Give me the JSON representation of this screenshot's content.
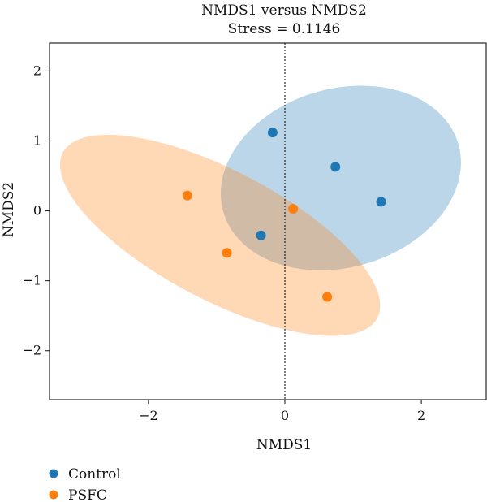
{
  "chart_data": {
    "type": "scatter",
    "title": "NMDS1 versus NMDS2",
    "subtitle": "Stress = 0.1146",
    "xlabel": "NMDS1",
    "ylabel": "NMDS2",
    "xlim": [
      -3.45,
      2.95
    ],
    "ylim": [
      -2.7,
      2.4
    ],
    "xticks": [
      -2,
      0,
      2
    ],
    "yticks": [
      -2,
      -1,
      0,
      1,
      2
    ],
    "xtick_labels": [
      "−2",
      "0",
      "2"
    ],
    "ytick_labels": [
      "−2",
      "−1",
      "0",
      "1",
      "2"
    ],
    "reference_line": {
      "axis": "x",
      "value": 0,
      "style": "dotted"
    },
    "grid": false,
    "legend_position": "bottom-left",
    "series": [
      {
        "name": "Control",
        "color": "#1f77b4",
        "fill_color": "#a9cde9",
        "points": [
          {
            "x": -0.18,
            "y": 1.12
          },
          {
            "x": 0.74,
            "y": 0.63
          },
          {
            "x": 1.41,
            "y": 0.13
          },
          {
            "x": -0.35,
            "y": -0.35
          }
        ],
        "ellipse": {
          "cx": 0.82,
          "cy": 0.47,
          "rx": 1.79,
          "ry": 1.28,
          "angle_deg": 15
        }
      },
      {
        "name": "PSFC",
        "color": "#ff7f0e",
        "fill_color": "#fdd3ad",
        "points": [
          {
            "x": -1.43,
            "y": 0.22
          },
          {
            "x": 0.12,
            "y": 0.03
          },
          {
            "x": -0.85,
            "y": -0.6
          },
          {
            "x": 0.62,
            "y": -1.23
          }
        ],
        "ellipse": {
          "cx": -0.95,
          "cy": -0.35,
          "rx": 2.59,
          "ry": 0.93,
          "angle_deg": -27
        }
      }
    ]
  }
}
